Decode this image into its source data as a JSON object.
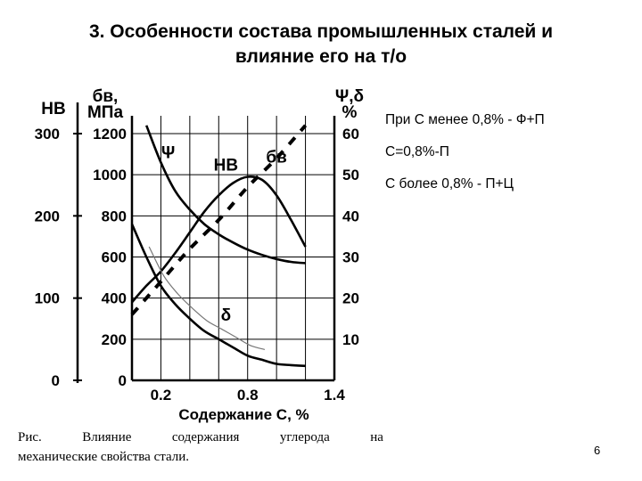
{
  "slide": {
    "title_line1": "3. Особенности состава промышленных сталей и",
    "title_line2": "влияние его на т/о",
    "notes": [
      "При С менее 0,8%  - Ф+П",
      "С=0,8%-П",
      "С более 0,8% - П+Ц"
    ],
    "caption_words": [
      "Рис.",
      "Влияние",
      "содержания",
      "углерода",
      "на"
    ],
    "caption_line2": "механические свойства стали.",
    "page_number": "6"
  },
  "chart_data": {
    "type": "line",
    "xlabel": "Содержание С, %",
    "x_ticks": [
      "0.2",
      "0.8",
      "1.4"
    ],
    "xlim": [
      0,
      1.4
    ],
    "grid": true,
    "axes": {
      "hb": {
        "label": "НВ",
        "ticks": [
          "300",
          "200",
          "100",
          "0"
        ],
        "range": [
          0,
          300
        ]
      },
      "sigma": {
        "label_line1": "бв,",
        "label_line2": "МПа",
        "ticks": [
          "1200",
          "1000",
          "800",
          "600",
          "400",
          "200",
          "0"
        ],
        "range": [
          0,
          1200
        ]
      },
      "psi_delta": {
        "label_line1": "Ψ,δ",
        "label_line2": "%",
        "ticks": [
          "60",
          "50",
          "40",
          "30",
          "20",
          "10"
        ],
        "range": [
          0,
          60
        ]
      }
    },
    "series": [
      {
        "name": "НВ",
        "style": "dashed",
        "axis": "hb",
        "label_position": "mid",
        "x": [
          0,
          0.2,
          0.4,
          0.6,
          0.8,
          1.0,
          1.2
        ],
        "y": [
          80,
          120,
          160,
          195,
          235,
          270,
          310
        ]
      },
      {
        "name": "бв",
        "style": "solid",
        "axis": "sigma",
        "x": [
          0,
          0.1,
          0.2,
          0.3,
          0.4,
          0.5,
          0.6,
          0.7,
          0.8,
          0.9,
          1.0,
          1.1,
          1.2
        ],
        "y": [
          380,
          460,
          530,
          620,
          720,
          820,
          900,
          960,
          990,
          975,
          900,
          780,
          650
        ]
      },
      {
        "name": "Ψ",
        "style": "solid",
        "axis": "psi_delta",
        "x": [
          0.1,
          0.2,
          0.3,
          0.4,
          0.5,
          0.6,
          0.7,
          0.8,
          0.9,
          1.0,
          1.1,
          1.2
        ],
        "y": [
          62,
          53,
          46,
          41.5,
          38,
          35.5,
          33.5,
          31.8,
          30.5,
          29.5,
          28.8,
          28.5
        ]
      },
      {
        "name": "δ",
        "style": "solid",
        "axis": "psi_delta",
        "x": [
          0,
          0.1,
          0.2,
          0.3,
          0.4,
          0.5,
          0.6,
          0.7,
          0.8,
          0.9,
          1.0,
          1.1,
          1.2
        ],
        "y": [
          38,
          30,
          23,
          18.5,
          15,
          12,
          10,
          8,
          6,
          5,
          4,
          3.7,
          3.5
        ]
      }
    ]
  }
}
